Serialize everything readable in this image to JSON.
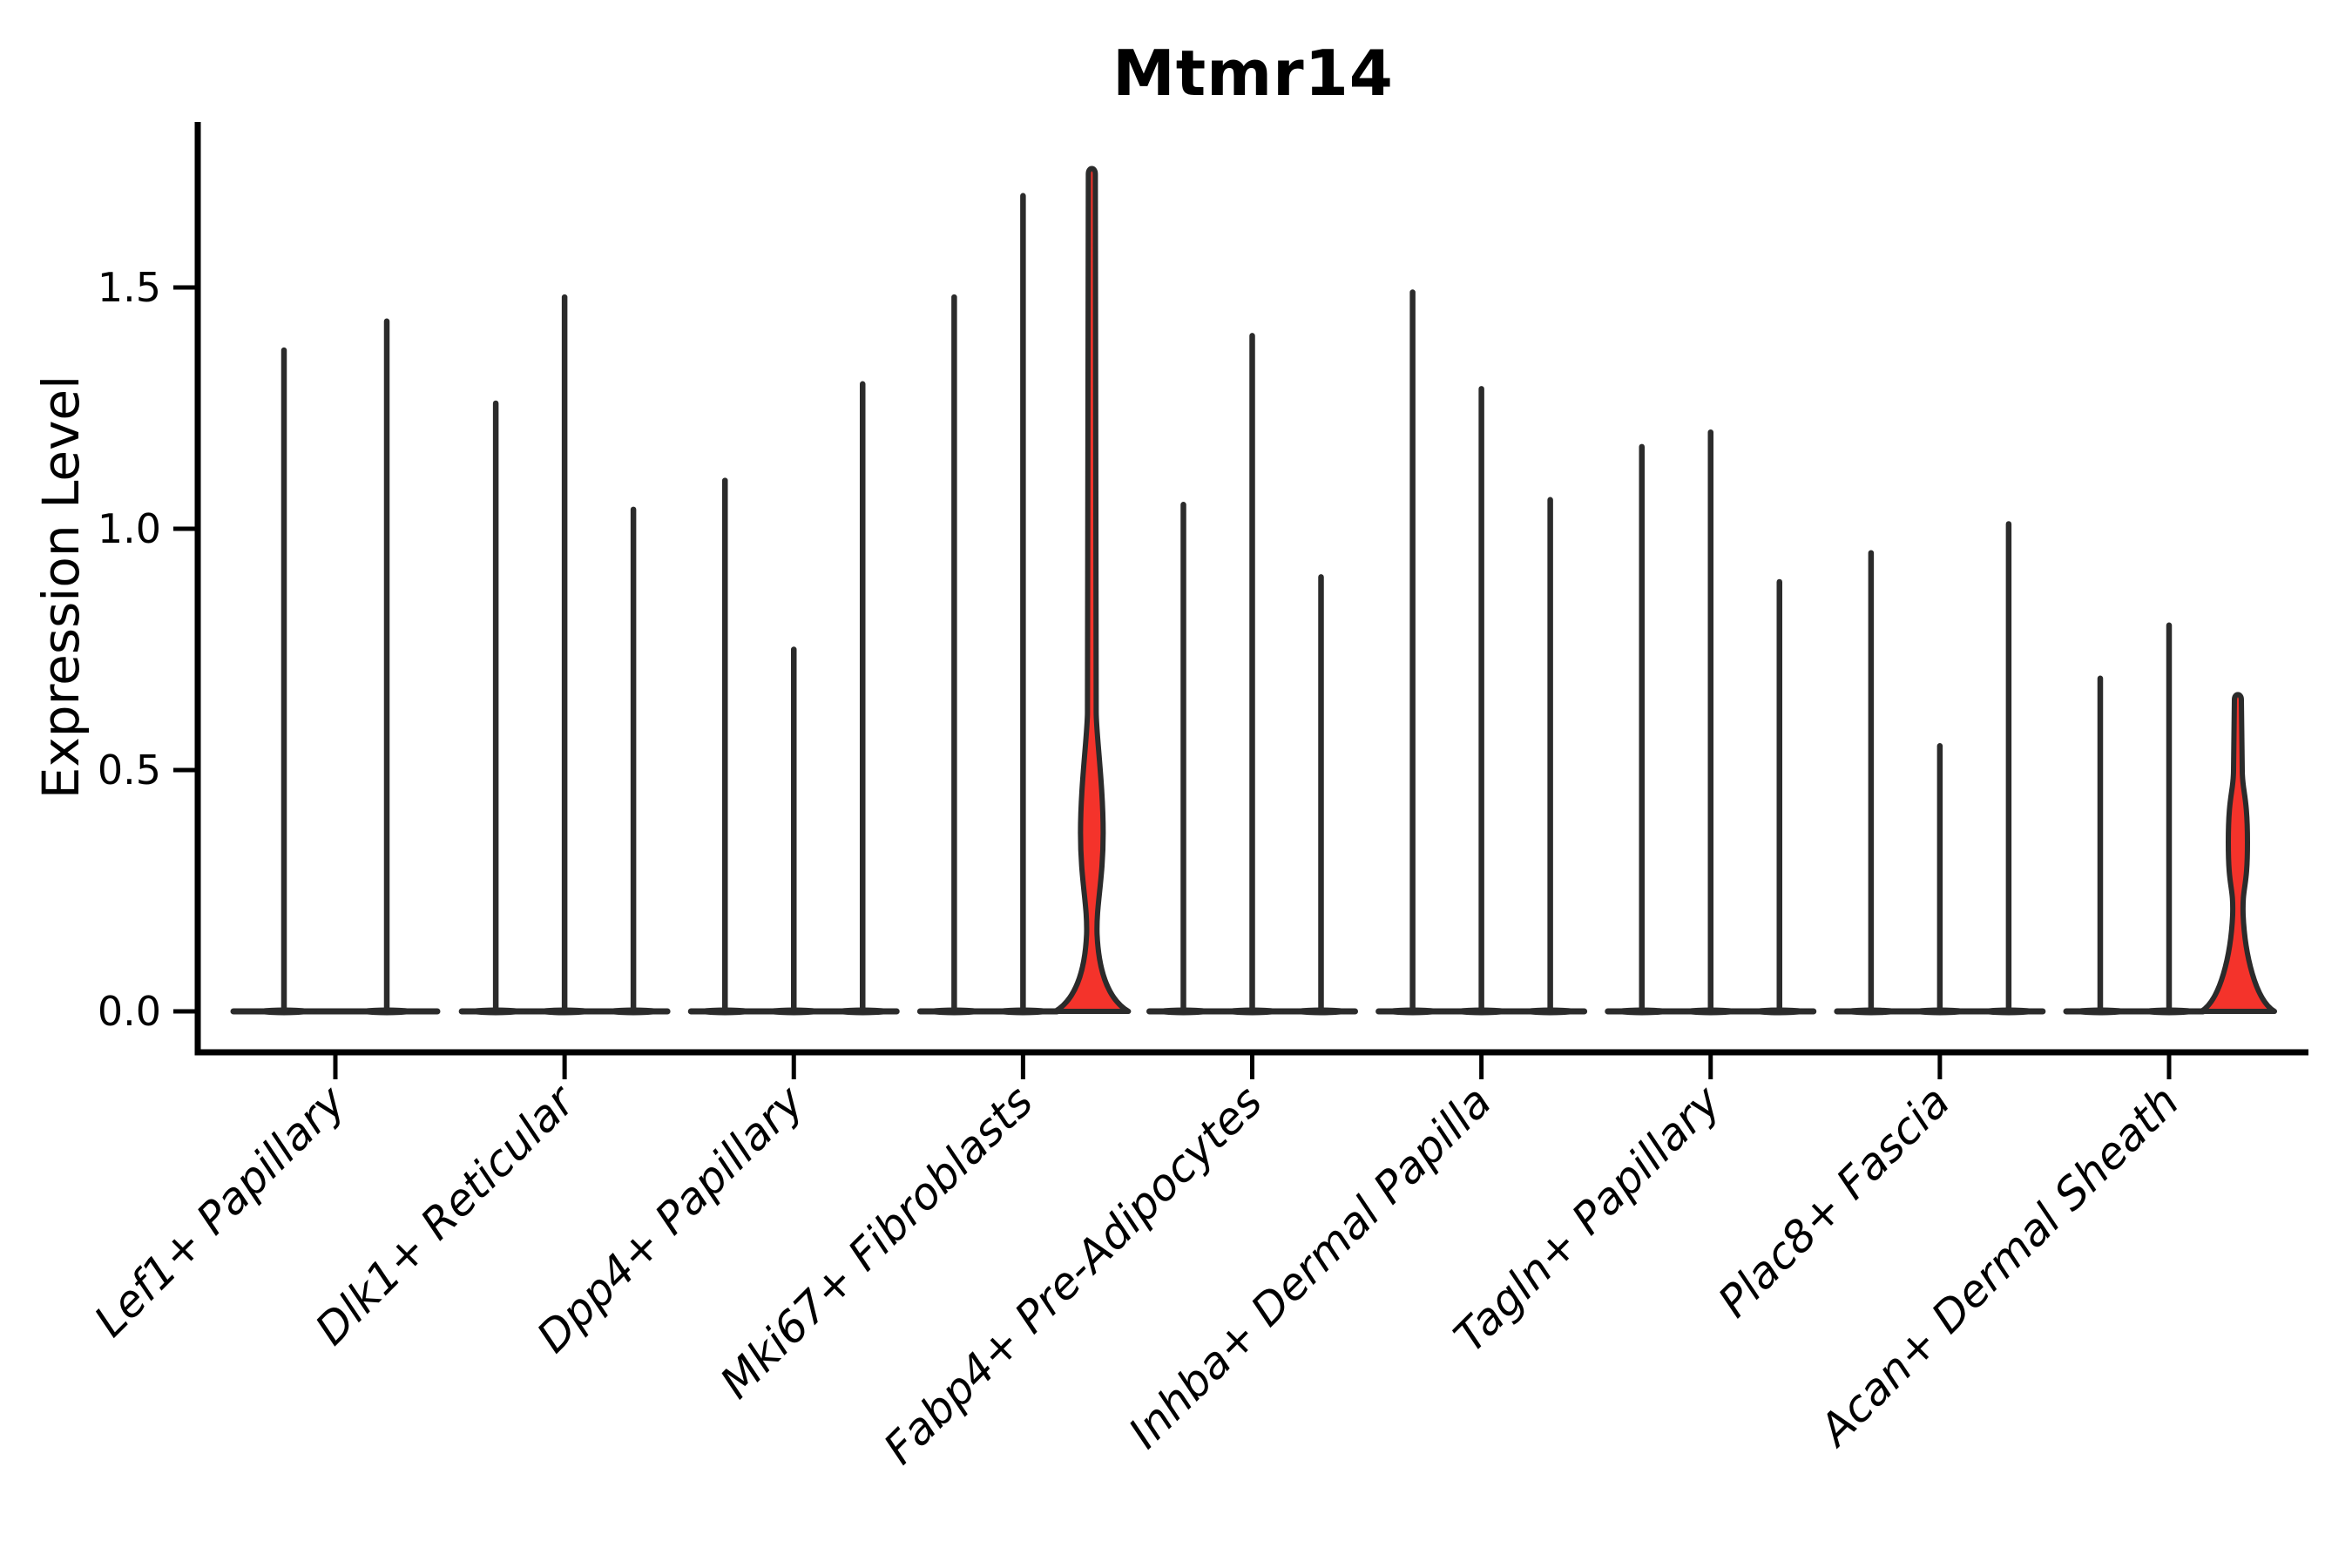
{
  "chart_data": {
    "type": "violin",
    "title": "Mtmr14",
    "ylabel": "Expression Level",
    "ylim": [
      0,
      1.8
    ],
    "yticks": [
      0.0,
      0.5,
      1.0,
      1.5
    ],
    "ytick_labels": [
      "0.0",
      "0.5",
      "1.0",
      "1.5"
    ],
    "legend": "none",
    "grid": false,
    "categories": [
      "Lef1+ Papillary",
      "Dlk1+ Reticular",
      "Dpp4+ Papillary",
      "Mki67+ Fibroblasts",
      "Fabp4+ Pre-Adipocytes",
      "Inhba+ Dermal Papilla",
      "Tagln+ Papillary",
      "Plac8+ Fascia",
      "Acan+ Dermal Sheath"
    ],
    "groups": [
      {
        "category": "Lef1+ Papillary",
        "violins": [
          {
            "max": 1.37
          },
          {
            "max": 1.43
          }
        ]
      },
      {
        "category": "Dlk1+ Reticular",
        "violins": [
          {
            "max": 1.26
          },
          {
            "max": 1.48
          },
          {
            "max": 1.04
          }
        ]
      },
      {
        "category": "Dpp4+ Papillary",
        "violins": [
          {
            "max": 1.1
          },
          {
            "max": 0.75
          },
          {
            "max": 1.3
          }
        ]
      },
      {
        "category": "Mki67+ Fibroblasts",
        "violins": [
          {
            "max": 1.48
          },
          {
            "max": 1.69
          },
          {
            "max": 1.75,
            "highlight": true,
            "pinch": 0.16,
            "bulge_peak": 0.37,
            "bulge_top": 0.62,
            "bulge_halfwidth": 13,
            "base_halfwidth": 42
          }
        ]
      },
      {
        "category": "Fabp4+ Pre-Adipocytes",
        "violins": [
          {
            "max": 1.05
          },
          {
            "max": 1.4
          },
          {
            "max": 0.9
          }
        ]
      },
      {
        "category": "Inhba+ Dermal Papilla",
        "violins": [
          {
            "max": 1.49
          },
          {
            "max": 1.29
          },
          {
            "max": 1.06
          }
        ]
      },
      {
        "category": "Tagln+ Papillary",
        "violins": [
          {
            "max": 1.17
          },
          {
            "max": 1.2
          },
          {
            "max": 0.89
          }
        ]
      },
      {
        "category": "Plac8+ Fascia",
        "violins": [
          {
            "max": 0.95
          },
          {
            "max": 0.55
          },
          {
            "max": 1.01
          }
        ]
      },
      {
        "category": "Acan+ Dermal Sheath",
        "violins": [
          {
            "max": 0.69
          },
          {
            "max": 0.8
          },
          {
            "max": 0.66,
            "highlight": true,
            "pinch": 0.2,
            "bulge_peak": 0.35,
            "bulge_top": 0.5,
            "bulge_halfwidth": 11,
            "base_halfwidth": 42
          }
        ]
      }
    ],
    "colors": {
      "violin_stroke": "#2b2b2b",
      "highlight_fill": "#f4332b",
      "axis": "#000000",
      "text": "#000000"
    }
  }
}
